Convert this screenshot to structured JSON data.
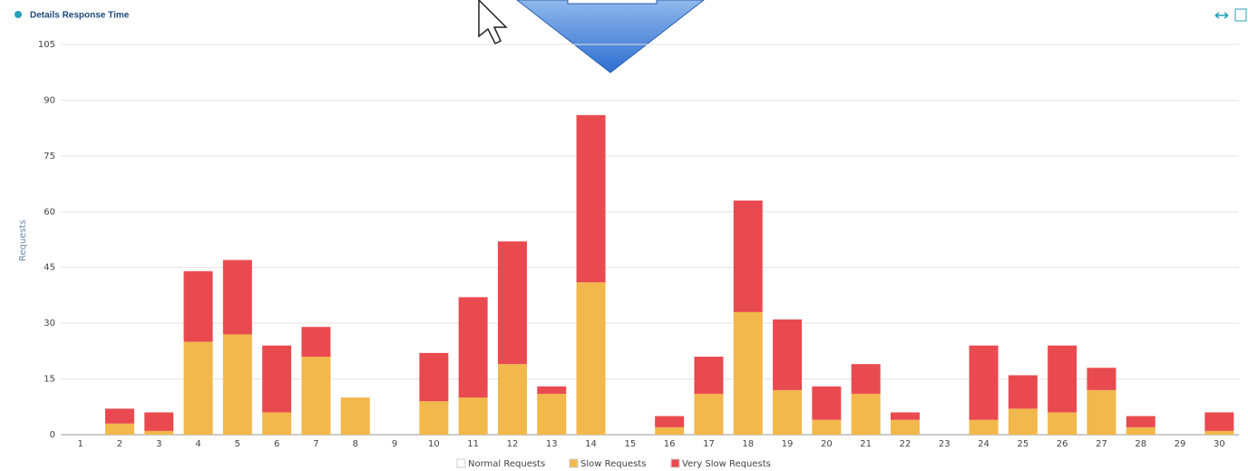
{
  "header": {
    "title": "Details Response Time"
  },
  "chart_data": {
    "type": "stacked-bar",
    "y_label": "Requests",
    "categories": [
      "1",
      "2",
      "3",
      "4",
      "5",
      "6",
      "7",
      "8",
      "9",
      "10",
      "11",
      "12",
      "13",
      "14",
      "15",
      "16",
      "17",
      "18",
      "19",
      "20",
      "21",
      "22",
      "23",
      "24",
      "25",
      "26",
      "27",
      "28",
      "29",
      "30"
    ],
    "series": [
      {
        "name": "Normal Requests",
        "color": "#ffffff",
        "values": [
          0,
          0,
          0,
          0,
          0,
          0,
          0,
          0,
          0,
          0,
          0,
          0,
          0,
          0,
          0,
          0,
          0,
          0,
          0,
          0,
          0,
          0,
          0,
          0,
          0,
          0,
          0,
          0,
          0,
          0
        ]
      },
      {
        "name": "Slow Requests",
        "color": "#f2b84b",
        "values": [
          0,
          3,
          1,
          25,
          27,
          6,
          21,
          10,
          0,
          9,
          10,
          19,
          11,
          41,
          0,
          2,
          11,
          33,
          12,
          4,
          11,
          4,
          0,
          4,
          7,
          6,
          12,
          2,
          0,
          1
        ]
      },
      {
        "name": "Very Slow Requests",
        "color": "#e94a50",
        "values": [
          0,
          4,
          5,
          19,
          20,
          18,
          8,
          0,
          0,
          13,
          27,
          33,
          2,
          45,
          0,
          3,
          10,
          30,
          19,
          9,
          8,
          2,
          0,
          20,
          9,
          18,
          6,
          3,
          0,
          5
        ]
      }
    ],
    "ylim": [
      0,
      105
    ],
    "yticks": [
      0,
      15,
      30,
      45,
      60,
      75,
      90,
      105
    ],
    "grid": true,
    "legend": "bottom"
  }
}
